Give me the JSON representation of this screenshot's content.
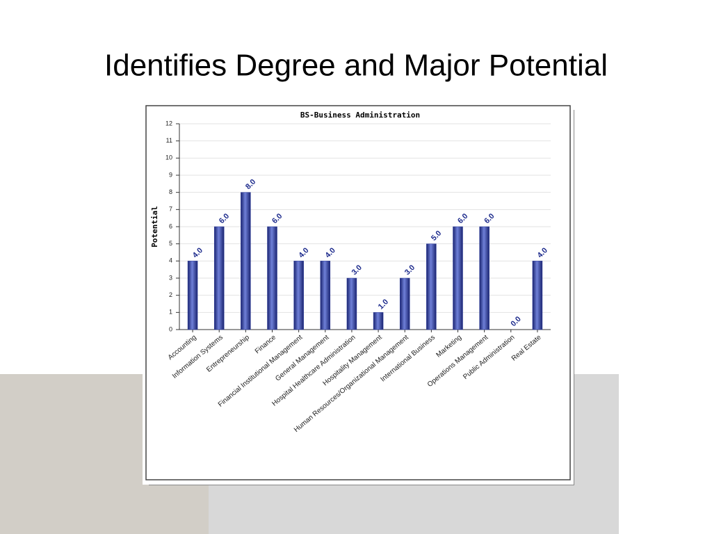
{
  "slide": {
    "title": "Identifies Degree and Major Potential"
  },
  "chart_data": {
    "type": "bar",
    "title": "BS-Business Administration",
    "y_label": "Potential",
    "categories": [
      "Accounting",
      "Information Systems",
      "Entrepreneurship",
      "Finance",
      "Financial Institutional Management",
      "General Management",
      "Hospital Healthcare Administration",
      "Hospitality Management",
      "Human Resources/Organizational Management",
      "International Business",
      "Marketing",
      "Operations Management",
      "Public Administration",
      "Real Estate"
    ],
    "values": [
      4,
      6,
      8,
      6,
      4,
      4,
      3,
      1,
      3,
      5,
      6,
      6,
      0,
      4
    ],
    "value_labels": [
      "4.0",
      "6.0",
      "8.0",
      "6.0",
      "4.0",
      "4.0",
      "3.0",
      "1.0",
      "3.0",
      "5.0",
      "6.0",
      "6.0",
      "0.0",
      "4.0"
    ],
    "color": "#2a3a9c",
    "ylim": [
      0,
      12
    ],
    "yticks": [
      0,
      1,
      2,
      3,
      4,
      5,
      6,
      7,
      8,
      9,
      10,
      11,
      12
    ],
    "grid": true
  }
}
